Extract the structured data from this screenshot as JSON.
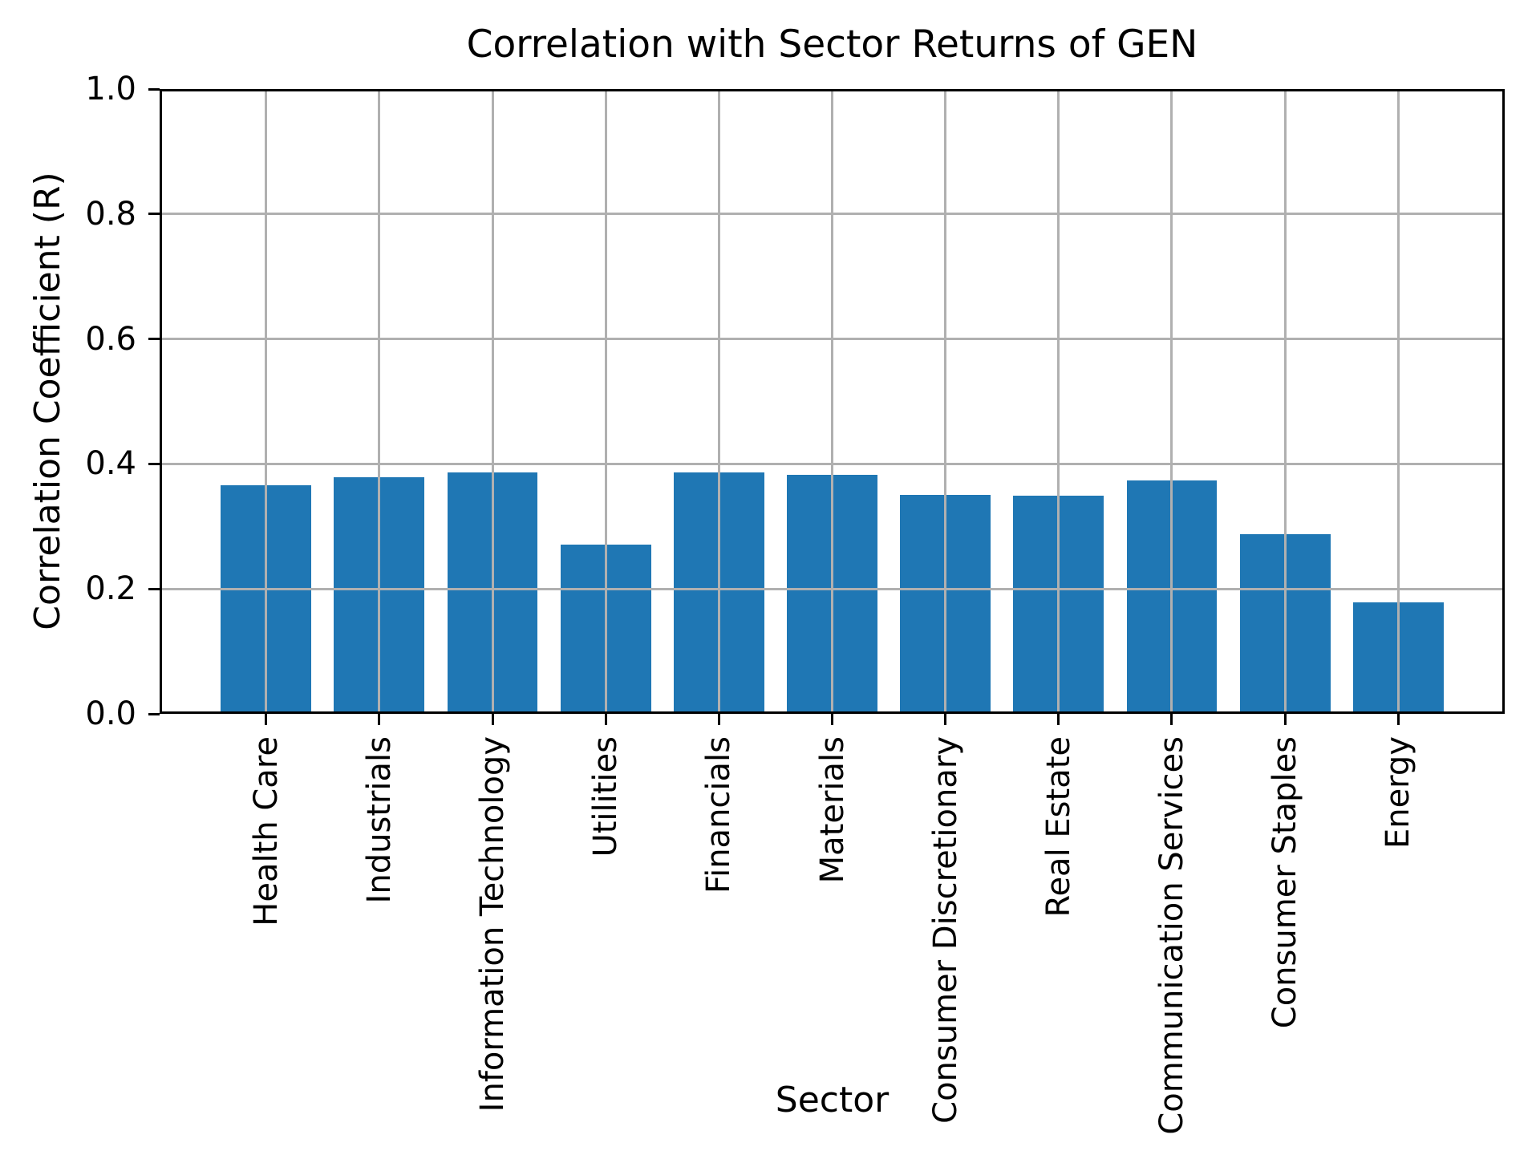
{
  "chart_data": {
    "type": "bar",
    "title": "Correlation with Sector Returns of GEN",
    "xlabel": "Sector",
    "ylabel": "Correlation Coefficient (R)",
    "categories": [
      "Health Care",
      "Industrials",
      "Information Technology",
      "Utilities",
      "Financials",
      "Materials",
      "Consumer Discretionary",
      "Real Estate",
      "Communication Services",
      "Consumer Staples",
      "Energy"
    ],
    "values": [
      0.366,
      0.379,
      0.386,
      0.271,
      0.386,
      0.383,
      0.35,
      0.349,
      0.373,
      0.288,
      0.178
    ],
    "ylim": [
      0.0,
      1.0
    ],
    "ytick_labels": [
      "0.0",
      "0.2",
      "0.4",
      "0.6",
      "0.8",
      "1.0"
    ],
    "yticks": [
      0.0,
      0.2,
      0.4,
      0.6,
      0.8,
      1.0
    ],
    "grid": true,
    "legend": null,
    "bar_color": "#1f77b4",
    "grid_color": "#b0b0b0",
    "axis_color": "#000000",
    "background_color": "#ffffff"
  }
}
